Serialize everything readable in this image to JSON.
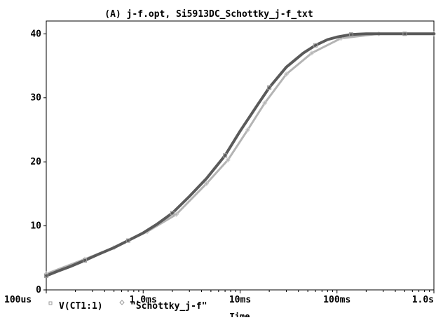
{
  "chart_data": {
    "type": "line",
    "title": "(A) j-f.opt, Si5913DC_Schottky_j-f_txt",
    "xlabel": "Time",
    "ylabel": "",
    "x_scale": "log",
    "xlim": [
      0.0001,
      1.0
    ],
    "ylim": [
      0,
      42
    ],
    "x_ticks": [
      0.0001,
      0.001,
      0.01,
      0.1,
      1.0
    ],
    "x_tick_labels": [
      "100us",
      "1.0ms",
      "10ms",
      "100ms",
      "1.0s"
    ],
    "y_ticks": [
      0,
      10,
      20,
      30,
      40
    ],
    "y_tick_labels": [
      "0",
      "10",
      "20",
      "30",
      "40"
    ],
    "grid": false,
    "legend_position": "bottom-left",
    "series": [
      {
        "name": "V(CT1:1)",
        "color": "#5a5a5a",
        "marker": "square",
        "x": [
          0.0001,
          0.00013,
          0.00018,
          0.00025,
          0.00035,
          0.0005,
          0.0007,
          0.001,
          0.0014,
          0.002,
          0.003,
          0.0045,
          0.007,
          0.01,
          0.015,
          0.02,
          0.03,
          0.045,
          0.06,
          0.08,
          0.1,
          0.14,
          0.2,
          0.3,
          0.5,
          0.7,
          1.0
        ],
        "y": [
          2.2,
          2.9,
          3.7,
          4.6,
          5.6,
          6.6,
          7.7,
          8.9,
          10.3,
          12.0,
          14.6,
          17.4,
          21.0,
          24.8,
          28.8,
          31.6,
          34.8,
          37.0,
          38.2,
          39.1,
          39.5,
          39.9,
          40.0,
          40.0,
          40.0,
          40.0,
          40.0
        ]
      },
      {
        "name": "\"Schottky_j-f\"",
        "color": "#b4b4b4",
        "marker": "diamond",
        "x": [
          0.0001,
          0.00025,
          0.0005,
          0.0011,
          0.0022,
          0.0045,
          0.0075,
          0.012,
          0.018,
          0.03,
          0.055,
          0.11,
          0.27,
          1.0
        ],
        "y": [
          2.5,
          4.8,
          6.6,
          9.1,
          11.8,
          16.6,
          20.3,
          25.0,
          29.2,
          33.7,
          37.0,
          39.3,
          40.0,
          40.0
        ]
      }
    ]
  }
}
